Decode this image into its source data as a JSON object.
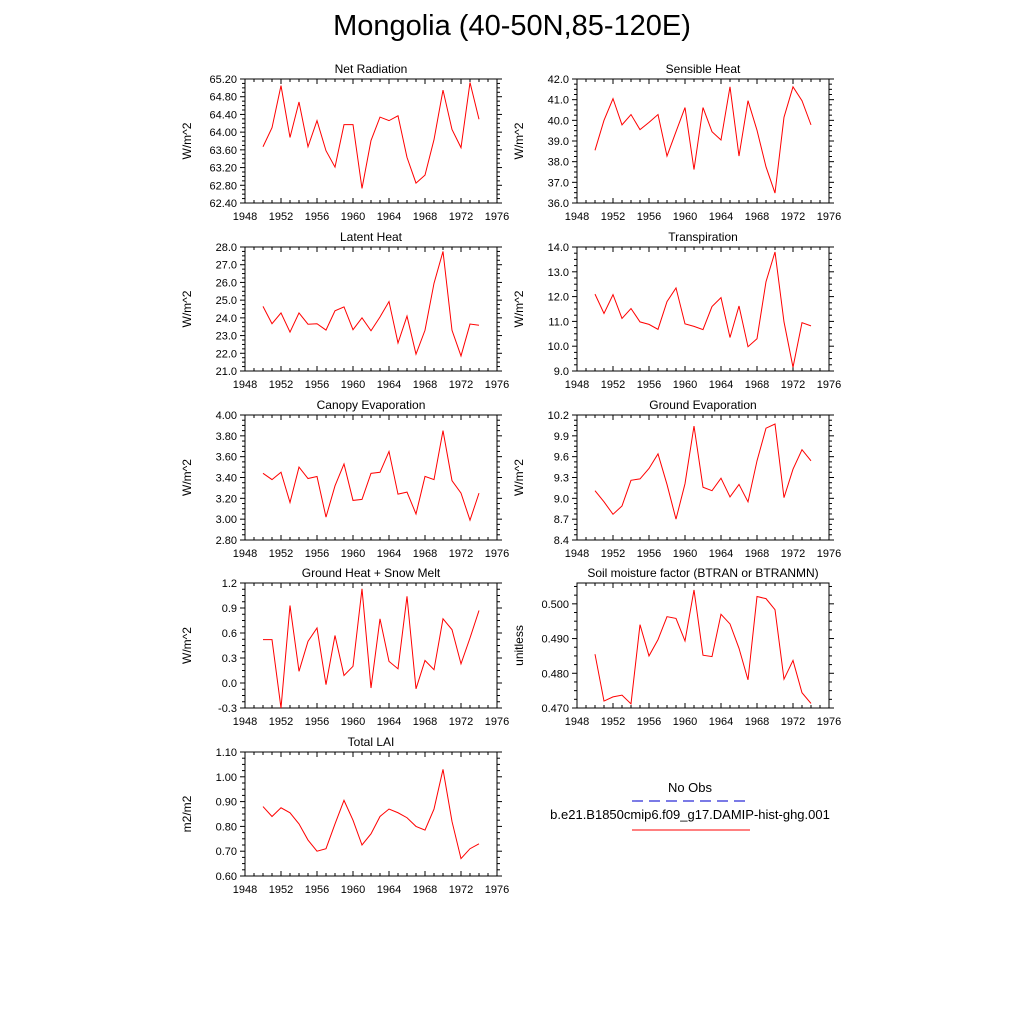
{
  "title": "Mongolia (40-50N,85-120E)",
  "legend": {
    "obs_label": "No Obs",
    "obs_color": "#2b2bd6",
    "model_label": "b.e21.B1850cmip6.f09_g17.DAMIP-hist-ghg.001",
    "model_color": "#ff0000"
  },
  "chart_data": [
    {
      "type": "line",
      "title": "Net Radiation",
      "ylabel": "W/m^2",
      "xlim": [
        1948,
        1976
      ],
      "xticks": [
        "1948",
        "1952",
        "1956",
        "1960",
        "1964",
        "1968",
        "1972",
        "1976"
      ],
      "ylim": [
        62.4,
        65.2
      ],
      "yticks": [
        "62.40",
        "62.80",
        "63.20",
        "63.60",
        "64.00",
        "64.40",
        "64.80",
        "65.20"
      ],
      "x": [
        1950,
        1951,
        1952,
        1953,
        1954,
        1955,
        1956,
        1957,
        1958,
        1959,
        1960,
        1961,
        1962,
        1963,
        1964,
        1965,
        1966,
        1967,
        1968,
        1969,
        1970,
        1971,
        1972,
        1973,
        1974
      ],
      "series": [
        {
          "values": [
            63.67,
            64.1,
            65.05,
            63.88,
            64.68,
            63.67,
            64.26,
            63.58,
            63.21,
            64.17,
            64.17,
            62.73,
            63.81,
            64.34,
            64.26,
            64.37,
            63.43,
            62.85,
            63.03,
            63.83,
            64.95,
            64.06,
            63.65,
            65.12,
            64.29
          ]
        }
      ]
    },
    {
      "type": "line",
      "title": "Sensible Heat",
      "ylabel": "W/m^2",
      "xlim": [
        1948,
        1976
      ],
      "xticks": [
        "1948",
        "1952",
        "1956",
        "1960",
        "1964",
        "1968",
        "1972",
        "1976"
      ],
      "ylim": [
        36.0,
        42.0
      ],
      "yticks": [
        "36.0",
        "37.0",
        "38.0",
        "39.0",
        "40.0",
        "41.0",
        "42.0"
      ],
      "x": [
        1950,
        1951,
        1952,
        1953,
        1954,
        1955,
        1956,
        1957,
        1958,
        1959,
        1960,
        1961,
        1962,
        1963,
        1964,
        1965,
        1966,
        1967,
        1968,
        1969,
        1970,
        1971,
        1972,
        1973,
        1974
      ],
      "series": [
        {
          "values": [
            38.55,
            40.0,
            41.05,
            39.78,
            40.28,
            39.55,
            39.9,
            40.28,
            38.27,
            39.45,
            40.62,
            37.62,
            40.62,
            39.45,
            39.05,
            41.62,
            38.27,
            40.95,
            39.52,
            37.75,
            36.48,
            40.15,
            41.62,
            40.95,
            39.78
          ]
        }
      ]
    },
    {
      "type": "line",
      "title": "Latent Heat",
      "ylabel": "W/m^2",
      "xlim": [
        1948,
        1976
      ],
      "xticks": [
        "1948",
        "1952",
        "1956",
        "1960",
        "1964",
        "1968",
        "1972",
        "1976"
      ],
      "ylim": [
        21.0,
        28.0
      ],
      "yticks": [
        "21.0",
        "22.0",
        "23.0",
        "24.0",
        "25.0",
        "26.0",
        "27.0",
        "28.0"
      ],
      "x": [
        1950,
        1951,
        1952,
        1953,
        1954,
        1955,
        1956,
        1957,
        1958,
        1959,
        1960,
        1961,
        1962,
        1963,
        1964,
        1965,
        1966,
        1967,
        1968,
        1969,
        1970,
        1971,
        1972,
        1973,
        1974
      ],
      "series": [
        {
          "values": [
            24.65,
            23.67,
            24.28,
            23.2,
            24.28,
            23.64,
            23.67,
            23.31,
            24.4,
            24.62,
            23.33,
            24.0,
            23.27,
            24.05,
            24.92,
            22.58,
            24.1,
            21.95,
            23.3,
            25.95,
            27.75,
            23.3,
            21.85,
            23.65,
            23.58
          ]
        }
      ]
    },
    {
      "type": "line",
      "title": "Transpiration",
      "ylabel": "W/m^2",
      "xlim": [
        1948,
        1976
      ],
      "xticks": [
        "1948",
        "1952",
        "1956",
        "1960",
        "1964",
        "1968",
        "1972",
        "1976"
      ],
      "ylim": [
        9.0,
        14.0
      ],
      "yticks": [
        "9.0",
        "10.0",
        "11.0",
        "12.0",
        "13.0",
        "14.0"
      ],
      "x": [
        1950,
        1951,
        1952,
        1953,
        1954,
        1955,
        1956,
        1957,
        1958,
        1959,
        1960,
        1961,
        1962,
        1963,
        1964,
        1965,
        1966,
        1967,
        1968,
        1969,
        1970,
        1971,
        1972,
        1973,
        1974
      ],
      "series": [
        {
          "values": [
            12.1,
            11.32,
            12.08,
            11.12,
            11.52,
            10.98,
            10.88,
            10.68,
            11.8,
            12.35,
            10.9,
            10.8,
            10.67,
            11.6,
            11.96,
            10.35,
            11.62,
            9.98,
            10.3,
            12.6,
            13.8,
            10.98,
            9.15,
            10.95,
            10.82
          ]
        }
      ]
    },
    {
      "type": "line",
      "title": "Canopy Evaporation",
      "ylabel": "W/m^2",
      "xlim": [
        1948,
        1976
      ],
      "xticks": [
        "1948",
        "1952",
        "1956",
        "1960",
        "1964",
        "1968",
        "1972",
        "1976"
      ],
      "ylim": [
        2.8,
        4.0
      ],
      "yticks": [
        "2.80",
        "3.00",
        "3.20",
        "3.40",
        "3.60",
        "3.80",
        "4.00"
      ],
      "x": [
        1950,
        1951,
        1952,
        1953,
        1954,
        1955,
        1956,
        1957,
        1958,
        1959,
        1960,
        1961,
        1962,
        1963,
        1964,
        1965,
        1966,
        1967,
        1968,
        1969,
        1970,
        1971,
        1972,
        1973,
        1974
      ],
      "series": [
        {
          "values": [
            3.44,
            3.38,
            3.45,
            3.16,
            3.5,
            3.39,
            3.41,
            3.02,
            3.32,
            3.53,
            3.18,
            3.19,
            3.44,
            3.45,
            3.65,
            3.24,
            3.26,
            3.05,
            3.41,
            3.38,
            3.85,
            3.37,
            3.25,
            2.99,
            3.25
          ]
        }
      ]
    },
    {
      "type": "line",
      "title": "Ground Evaporation",
      "ylabel": "W/m^2",
      "xlim": [
        1948,
        1976
      ],
      "xticks": [
        "1948",
        "1952",
        "1956",
        "1960",
        "1964",
        "1968",
        "1972",
        "1976"
      ],
      "ylim": [
        8.4,
        10.2
      ],
      "yticks": [
        "8.4",
        "8.7",
        "9.0",
        "9.3",
        "9.6",
        "9.9",
        "10.2"
      ],
      "x": [
        1950,
        1951,
        1952,
        1953,
        1954,
        1955,
        1956,
        1957,
        1958,
        1959,
        1960,
        1961,
        1962,
        1963,
        1964,
        1965,
        1966,
        1967,
        1968,
        1969,
        1970,
        1971,
        1972,
        1973,
        1974
      ],
      "series": [
        {
          "values": [
            9.11,
            8.95,
            8.77,
            8.89,
            9.26,
            9.28,
            9.43,
            9.64,
            9.2,
            8.7,
            9.21,
            10.04,
            9.16,
            9.11,
            9.29,
            9.02,
            9.2,
            8.95,
            9.54,
            10.01,
            10.07,
            9.01,
            9.42,
            9.7,
            9.54
          ]
        }
      ]
    },
    {
      "type": "line",
      "title": "Ground Heat + Snow Melt",
      "ylabel": "W/m^2",
      "xlim": [
        1948,
        1976
      ],
      "xticks": [
        "1948",
        "1952",
        "1956",
        "1960",
        "1964",
        "1968",
        "1972",
        "1976"
      ],
      "ylim": [
        -0.3,
        1.2
      ],
      "yticks": [
        "-0.3",
        "0.0",
        "0.3",
        "0.6",
        "0.9",
        "1.2"
      ],
      "x": [
        1950,
        1951,
        1952,
        1953,
        1954,
        1955,
        1956,
        1957,
        1958,
        1959,
        1960,
        1961,
        1962,
        1963,
        1964,
        1965,
        1966,
        1967,
        1968,
        1969,
        1970,
        1971,
        1972,
        1973,
        1974
      ],
      "series": [
        {
          "values": [
            0.52,
            0.52,
            -0.3,
            0.93,
            0.14,
            0.5,
            0.66,
            -0.02,
            0.57,
            0.09,
            0.2,
            1.13,
            -0.06,
            0.77,
            0.26,
            0.17,
            1.04,
            -0.07,
            0.27,
            0.16,
            0.77,
            0.64,
            0.23,
            0.54,
            0.87
          ]
        }
      ]
    },
    {
      "type": "line",
      "title": "Soil moisture factor (BTRAN or BTRANMN)",
      "ylabel": "unitless",
      "xlim": [
        1948,
        1976
      ],
      "xticks": [
        "1948",
        "1952",
        "1956",
        "1960",
        "1964",
        "1968",
        "1972",
        "1976"
      ],
      "ylim": [
        0.47,
        0.506
      ],
      "yticks": [
        "0.470",
        "0.480",
        "0.490",
        "0.500"
      ],
      "ytick_values": [
        0.47,
        0.48,
        0.49,
        0.5
      ],
      "x": [
        1950,
        1951,
        1952,
        1953,
        1954,
        1955,
        1956,
        1957,
        1958,
        1959,
        1960,
        1961,
        1962,
        1963,
        1964,
        1965,
        1966,
        1967,
        1968,
        1969,
        1970,
        1971,
        1972,
        1973,
        1974
      ],
      "series": [
        {
          "values": [
            0.4855,
            0.472,
            0.4732,
            0.4737,
            0.4712,
            0.494,
            0.485,
            0.4897,
            0.4963,
            0.4958,
            0.4893,
            0.504,
            0.4852,
            0.4848,
            0.497,
            0.4942,
            0.4872,
            0.4781,
            0.5021,
            0.5015,
            0.4983,
            0.4783,
            0.4837,
            0.4744,
            0.4713
          ]
        }
      ]
    },
    {
      "type": "line",
      "title": "Total LAI",
      "ylabel": "m2/m2",
      "xlim": [
        1948,
        1976
      ],
      "xticks": [
        "1948",
        "1952",
        "1956",
        "1960",
        "1964",
        "1968",
        "1972",
        "1976"
      ],
      "ylim": [
        0.6,
        1.1
      ],
      "yticks": [
        "0.60",
        "0.70",
        "0.80",
        "0.90",
        "1.00",
        "1.10"
      ],
      "x": [
        1950,
        1951,
        1952,
        1953,
        1954,
        1955,
        1956,
        1957,
        1958,
        1959,
        1960,
        1961,
        1962,
        1963,
        1964,
        1965,
        1966,
        1967,
        1968,
        1969,
        1970,
        1971,
        1972,
        1973,
        1974
      ],
      "series": [
        {
          "values": [
            0.88,
            0.84,
            0.875,
            0.855,
            0.81,
            0.745,
            0.7,
            0.71,
            0.81,
            0.905,
            0.825,
            0.725,
            0.77,
            0.84,
            0.87,
            0.855,
            0.835,
            0.8,
            0.785,
            0.87,
            1.03,
            0.82,
            0.67,
            0.71,
            0.73
          ]
        }
      ]
    }
  ]
}
